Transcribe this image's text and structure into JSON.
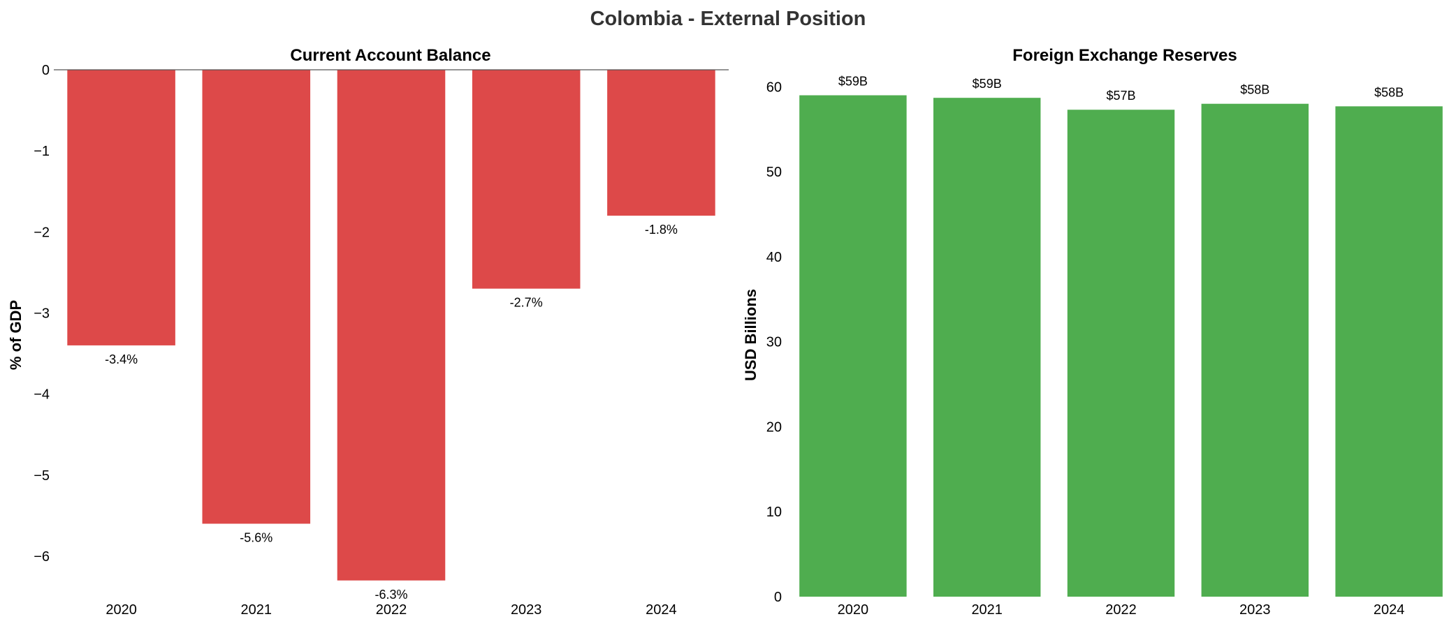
{
  "figure_title": "Colombia - External Position",
  "colors": {
    "current_account_bar": "#dd4949",
    "reserves_bar": "#4fad4f",
    "zero_line": "#555555",
    "text": "#000000",
    "title_text": "#333333"
  },
  "chart_data": [
    {
      "type": "bar",
      "title": "Current Account Balance",
      "xlabel": "",
      "ylabel": "% of GDP",
      "categories": [
        "2020",
        "2021",
        "2022",
        "2023",
        "2024"
      ],
      "values": [
        -3.4,
        -5.6,
        -6.3,
        -2.7,
        -1.8
      ],
      "data_labels": [
        "-3.4%",
        "-5.6%",
        "-6.3%",
        "-2.7%",
        "-1.8%"
      ],
      "ylim": [
        -6.5,
        0
      ],
      "yticks": [
        0,
        -1,
        -2,
        -3,
        -4,
        -5,
        -6
      ],
      "ytick_labels": [
        "0",
        "−1",
        "−2",
        "−3",
        "−4",
        "−5",
        "−6"
      ],
      "grid": false
    },
    {
      "type": "bar",
      "title": "Foreign Exchange Reserves",
      "xlabel": "",
      "ylabel": "USD Billions",
      "categories": [
        "2020",
        "2021",
        "2022",
        "2023",
        "2024"
      ],
      "values": [
        59.0,
        58.7,
        57.3,
        58.0,
        57.7
      ],
      "data_labels": [
        "$59B",
        "$59B",
        "$57B",
        "$58B",
        "$58B"
      ],
      "ylim": [
        0,
        62
      ],
      "yticks": [
        0,
        10,
        20,
        30,
        40,
        50,
        60
      ],
      "ytick_labels": [
        "0",
        "10",
        "20",
        "30",
        "40",
        "50",
        "60"
      ],
      "grid": false
    }
  ]
}
